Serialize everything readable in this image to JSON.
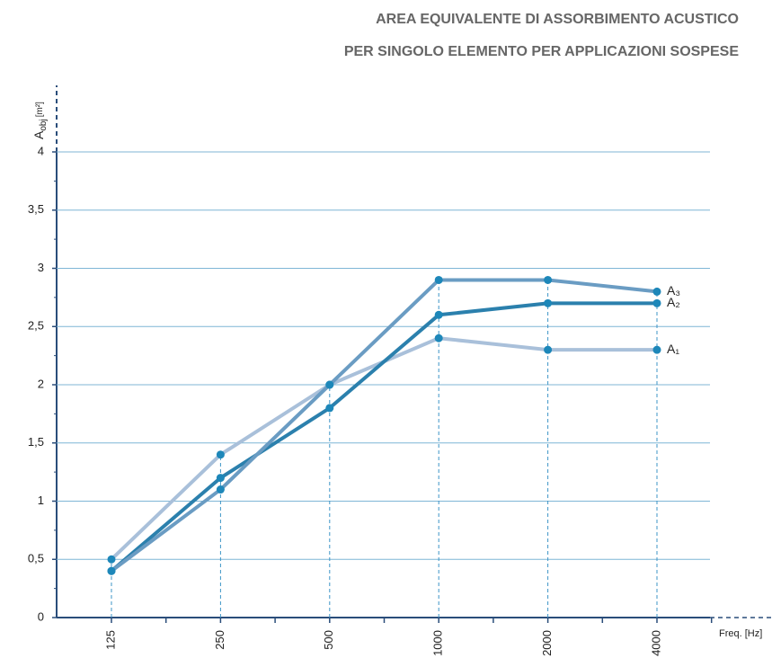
{
  "chart_data": {
    "type": "line",
    "title": [
      "AREA EQUIVALENTE DI ASSORBIMENTO ACUSTICO",
      "PER SINGOLO ELEMENTO PER APPLICAZIONI SOSPESE"
    ],
    "ylabel": "A",
    "ylabel_sub": "obj",
    "ylabel_unit": "[m²]",
    "xlabel": "Freq. [Hz]",
    "categories": [
      "125",
      "250",
      "500",
      "1000",
      "2000",
      "4000"
    ],
    "series": [
      {
        "name": "A₁",
        "color": "#a9c0da",
        "values": [
          0.5,
          1.4,
          2.0,
          2.4,
          2.3,
          2.3
        ]
      },
      {
        "name": "A₂",
        "color": "#2b80ad",
        "values": [
          0.4,
          1.2,
          1.8,
          2.6,
          2.7,
          2.7
        ]
      },
      {
        "name": "A₃",
        "color": "#6a9cc3",
        "values": [
          0.4,
          1.1,
          2.0,
          2.9,
          2.9,
          2.8
        ]
      }
    ],
    "marker_color": "#1d87b9",
    "ylim": [
      0,
      4
    ],
    "yticks": [
      0,
      {
        "value": 0.5,
        "label": "0,5"
      },
      1,
      {
        "value": 1.5,
        "label": "1,5"
      },
      2,
      {
        "value": 2.5,
        "label": "2,5"
      },
      3,
      {
        "value": 3.5,
        "label": "3,5"
      },
      4
    ],
    "grid": true
  }
}
